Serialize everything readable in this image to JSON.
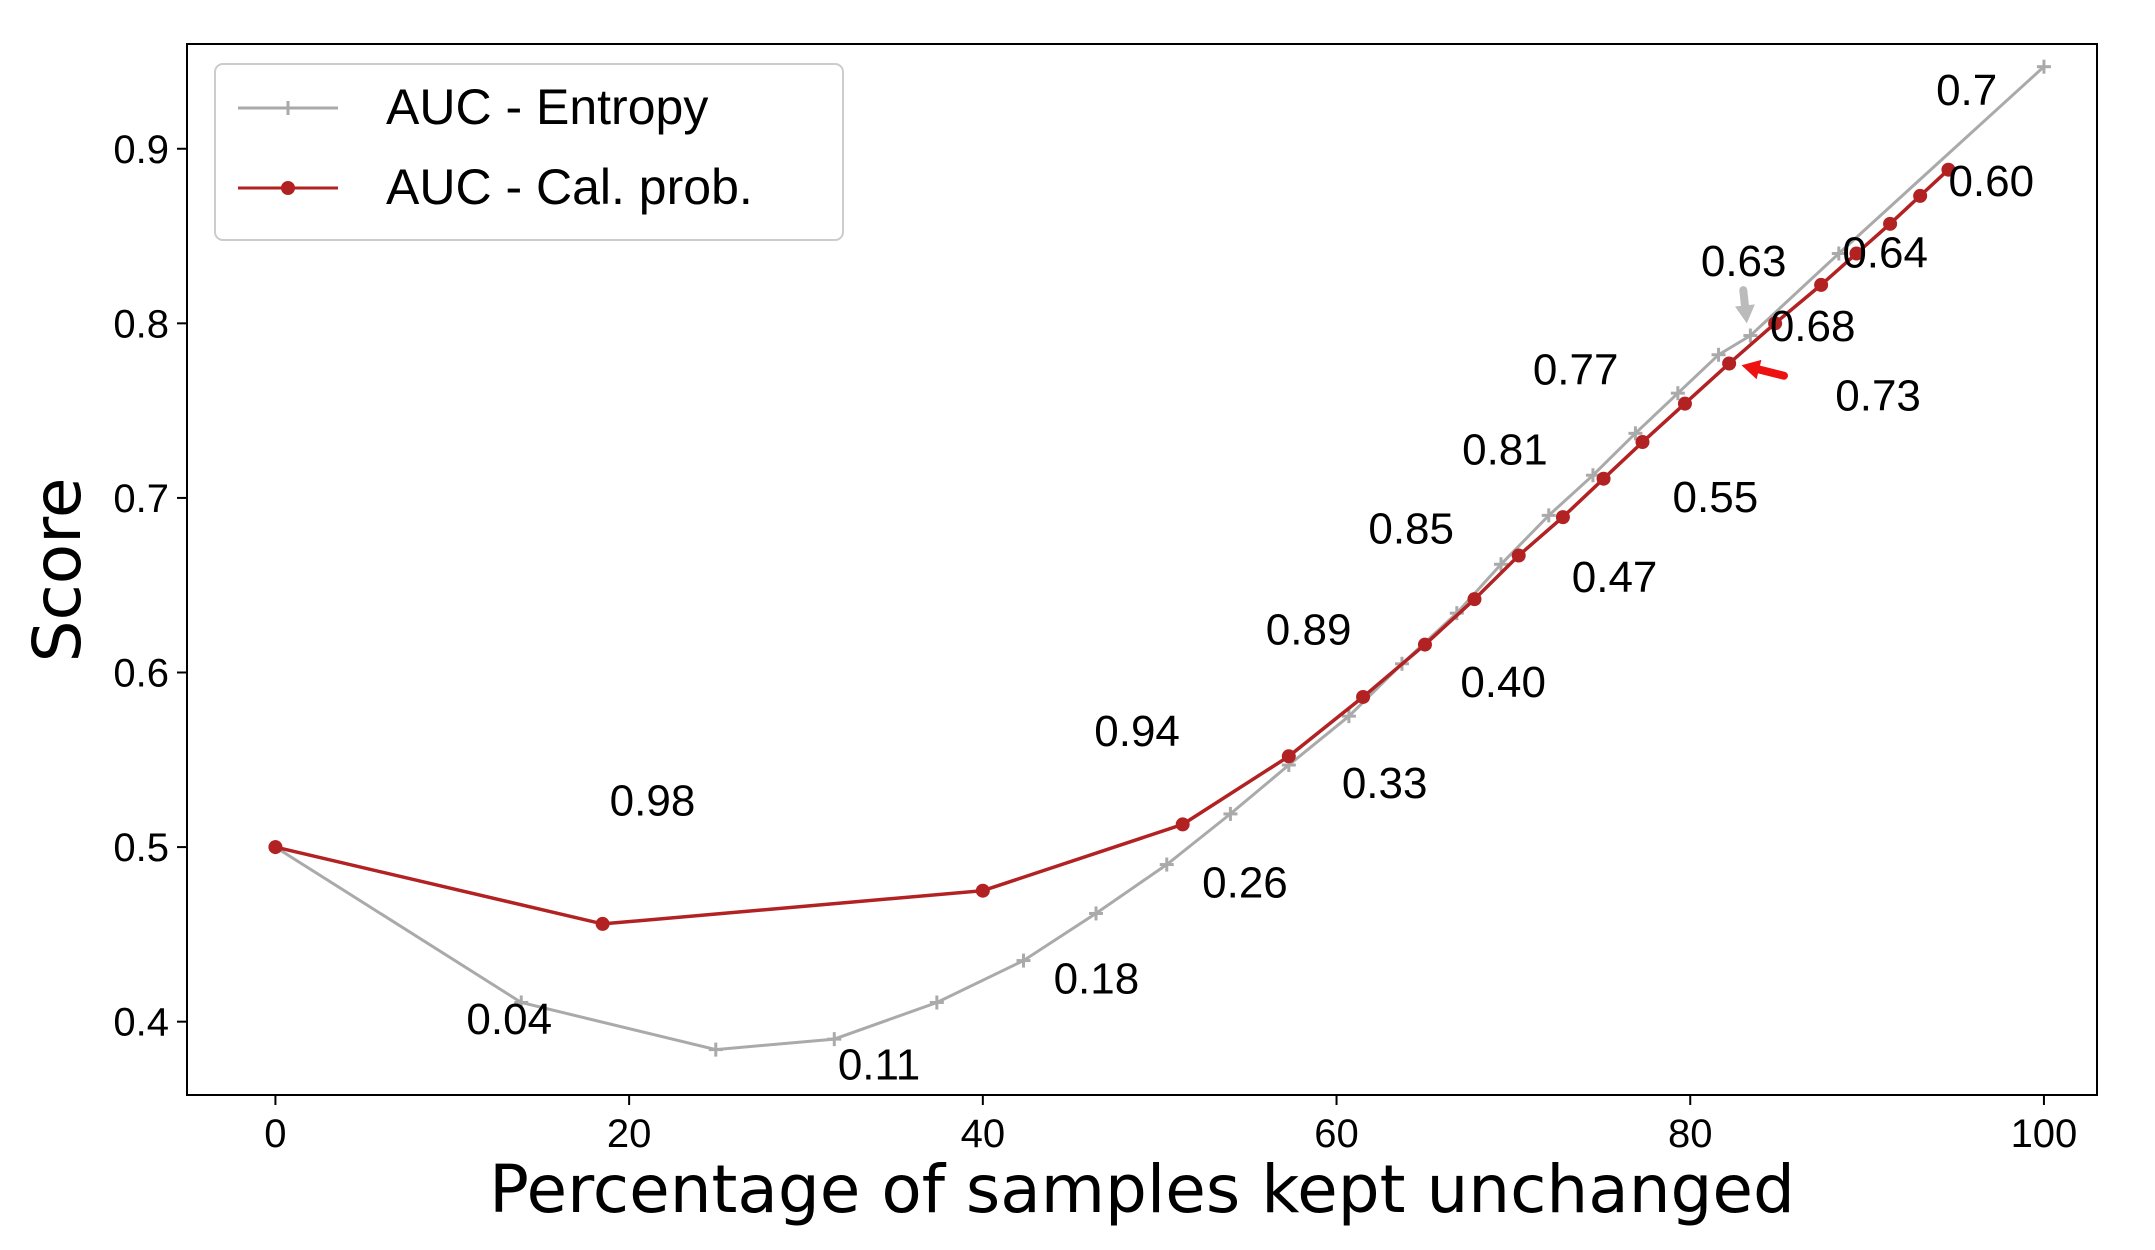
{
  "chart_data": {
    "type": "line",
    "xlabel": "Percentage of samples kept unchanged",
    "ylabel": "Score",
    "xlim": [
      -5,
      103
    ],
    "ylim": [
      0.358,
      0.96
    ],
    "xticks": [
      0,
      20,
      40,
      60,
      80,
      100
    ],
    "yticks": [
      0.4,
      0.5,
      0.6,
      0.7,
      0.8,
      0.9
    ],
    "xtick_labels": [
      "0",
      "20",
      "40",
      "60",
      "80",
      "100"
    ],
    "ytick_labels": [
      "0.4",
      "0.5",
      "0.6",
      "0.7",
      "0.8",
      "0.9"
    ],
    "legend_position": "top-left",
    "grid": false,
    "series": [
      {
        "name": "AUC - Entropy",
        "color": "#aaaaaa",
        "marker": "plus",
        "x": [
          0,
          13.9,
          24.9,
          31.6,
          37.4,
          42.3,
          46.4,
          50.4,
          54.0,
          57.3,
          60.7,
          63.7,
          66.8,
          69.3,
          72.0,
          74.5,
          76.9,
          79.3,
          81.6,
          83.4,
          88.4,
          100
        ],
        "y": [
          0.5,
          0.411,
          0.384,
          0.39,
          0.411,
          0.435,
          0.462,
          0.49,
          0.519,
          0.547,
          0.575,
          0.605,
          0.634,
          0.662,
          0.69,
          0.713,
          0.737,
          0.76,
          0.782,
          0.793,
          0.84,
          0.947
        ]
      },
      {
        "name": "AUC - Cal. prob.",
        "color": "#b22222",
        "marker": "circle",
        "x": [
          0,
          18.5,
          40.0,
          51.3,
          57.3,
          61.5,
          65.0,
          67.8,
          70.3,
          72.8,
          75.1,
          77.3,
          79.7,
          82.2,
          84.8,
          87.4,
          89.4,
          91.3,
          93.0,
          94.6
        ],
        "y": [
          0.5,
          0.456,
          0.475,
          0.513,
          0.552,
          0.586,
          0.616,
          0.642,
          0.667,
          0.689,
          0.711,
          0.732,
          0.754,
          0.777,
          0.8,
          0.822,
          0.84,
          0.857,
          0.873,
          0.888
        ]
      }
    ],
    "annotations": [
      {
        "text": "0.04",
        "x": 10.8,
        "y": 0.393
      },
      {
        "text": "0.11",
        "x": 31.8,
        "y": 0.367
      },
      {
        "text": "0.18",
        "x": 44.0,
        "y": 0.416
      },
      {
        "text": "0.26",
        "x": 52.4,
        "y": 0.471
      },
      {
        "text": "0.33",
        "x": 60.3,
        "y": 0.528
      },
      {
        "text": "0.40",
        "x": 67.0,
        "y": 0.586
      },
      {
        "text": "0.47",
        "x": 73.3,
        "y": 0.646
      },
      {
        "text": "0.55",
        "x": 79.0,
        "y": 0.692
      },
      {
        "text": "0.63",
        "x": 80.6,
        "y": 0.827
      },
      {
        "text": "0.73",
        "x": 88.2,
        "y": 0.75
      },
      {
        "text": "0.68",
        "x": 84.5,
        "y": 0.79
      },
      {
        "text": "0.64",
        "x": 88.6,
        "y": 0.832
      },
      {
        "text": "0.60",
        "x": 94.6,
        "y": 0.873
      },
      {
        "text": "0.7",
        "x": 93.9,
        "y": 0.925
      },
      {
        "text": "0.98",
        "x": 18.9,
        "y": 0.518
      },
      {
        "text": "0.94",
        "x": 46.3,
        "y": 0.558
      },
      {
        "text": "0.89",
        "x": 56.0,
        "y": 0.616
      },
      {
        "text": "0.85",
        "x": 61.8,
        "y": 0.674
      },
      {
        "text": "0.81",
        "x": 67.1,
        "y": 0.719
      },
      {
        "text": "0.77",
        "x": 71.1,
        "y": 0.765
      }
    ],
    "arrows": [
      {
        "color": "#bbbbbb",
        "from": [
          83.0,
          0.819
        ],
        "to": [
          83.2,
          0.8
        ]
      },
      {
        "color": "#ee1111",
        "from": [
          85.3,
          0.77
        ],
        "to": [
          82.9,
          0.776
        ]
      }
    ]
  }
}
